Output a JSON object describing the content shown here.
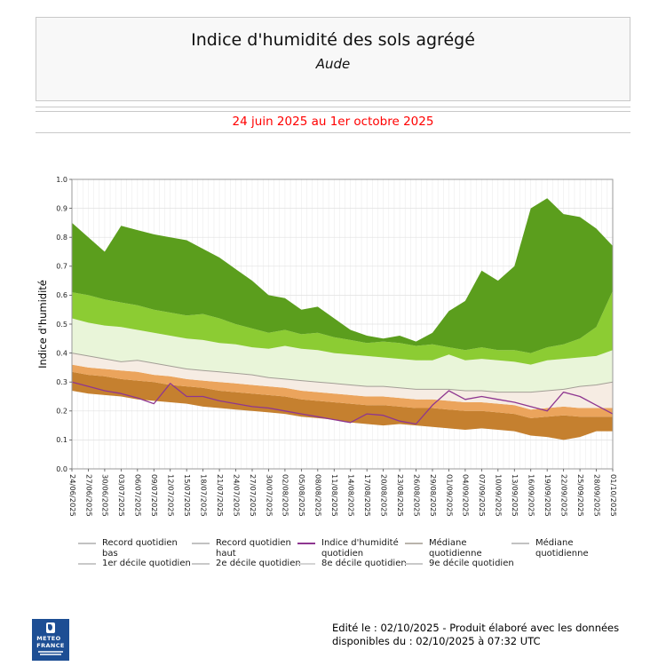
{
  "header": {
    "title": "Indice d'humidité des sols agrégé",
    "subtitle": "Aude",
    "period": "24 juin 2025 au 1er octobre 2025"
  },
  "colors": {
    "dark_green": "#5b9e1d",
    "bright_green": "#8ccc33",
    "pale_green": "#e9f5d9",
    "cream": "#f6ece3",
    "light_orange": "#eba45c",
    "dark_orange": "#c5802f",
    "indice_line": "#8e3690",
    "mediane_line": "#a39e96",
    "period_red": "#ff0000",
    "logo_blue": "#1d4e94",
    "axis": "#999999"
  },
  "chart_data": {
    "type": "area",
    "ylabel": "Indice d'humidité",
    "ylim": [
      0.0,
      1.0
    ],
    "grid": true,
    "legend_position": "bottom",
    "categories": [
      "24/06/2025",
      "27/06/2025",
      "30/06/2025",
      "03/07/2025",
      "06/07/2025",
      "09/07/2025",
      "12/07/2025",
      "15/07/2025",
      "18/07/2025",
      "21/07/2025",
      "24/07/2025",
      "27/07/2025",
      "30/07/2025",
      "02/08/2025",
      "05/08/2025",
      "08/08/2025",
      "11/08/2025",
      "14/08/2025",
      "17/08/2025",
      "20/08/2025",
      "23/08/2025",
      "26/08/2025",
      "29/08/2025",
      "01/09/2025",
      "04/09/2025",
      "07/09/2025",
      "10/09/2025",
      "13/09/2025",
      "16/09/2025",
      "19/09/2025",
      "22/09/2025",
      "25/09/2025",
      "28/09/2025",
      "01/10/2025"
    ],
    "series": [
      {
        "name": "Record quotidien bas",
        "values": [
          0.27,
          0.26,
          0.255,
          0.25,
          0.24,
          0.235,
          0.23,
          0.225,
          0.215,
          0.21,
          0.205,
          0.2,
          0.195,
          0.19,
          0.18,
          0.175,
          0.17,
          0.16,
          0.155,
          0.15,
          0.155,
          0.15,
          0.145,
          0.14,
          0.135,
          0.14,
          0.135,
          0.13,
          0.115,
          0.11,
          0.1,
          0.11,
          0.13,
          0.13
        ]
      },
      {
        "name": "1er décile quotidien",
        "values": [
          0.335,
          0.325,
          0.32,
          0.31,
          0.305,
          0.3,
          0.29,
          0.285,
          0.28,
          0.27,
          0.265,
          0.26,
          0.255,
          0.25,
          0.24,
          0.235,
          0.23,
          0.225,
          0.22,
          0.22,
          0.215,
          0.21,
          0.21,
          0.205,
          0.2,
          0.2,
          0.195,
          0.19,
          0.175,
          0.18,
          0.185,
          0.18,
          0.18,
          0.18
        ]
      },
      {
        "name": "2e décile quotidien",
        "values": [
          0.36,
          0.35,
          0.345,
          0.34,
          0.335,
          0.325,
          0.32,
          0.31,
          0.305,
          0.3,
          0.295,
          0.29,
          0.285,
          0.28,
          0.27,
          0.265,
          0.26,
          0.255,
          0.25,
          0.25,
          0.245,
          0.24,
          0.24,
          0.235,
          0.23,
          0.23,
          0.225,
          0.22,
          0.205,
          0.21,
          0.215,
          0.21,
          0.21,
          0.21
        ]
      },
      {
        "name": "Médiane quotidienne",
        "values": [
          0.4,
          0.39,
          0.38,
          0.37,
          0.375,
          0.365,
          0.355,
          0.345,
          0.34,
          0.335,
          0.33,
          0.325,
          0.315,
          0.31,
          0.305,
          0.3,
          0.295,
          0.29,
          0.285,
          0.285,
          0.28,
          0.275,
          0.275,
          0.275,
          0.27,
          0.27,
          0.265,
          0.265,
          0.265,
          0.27,
          0.275,
          0.285,
          0.29,
          0.3
        ]
      },
      {
        "name": "8e décile quotidien",
        "values": [
          0.52,
          0.505,
          0.495,
          0.49,
          0.48,
          0.47,
          0.46,
          0.45,
          0.445,
          0.435,
          0.43,
          0.42,
          0.415,
          0.425,
          0.415,
          0.41,
          0.4,
          0.395,
          0.39,
          0.385,
          0.38,
          0.375,
          0.375,
          0.395,
          0.375,
          0.38,
          0.375,
          0.37,
          0.36,
          0.375,
          0.38,
          0.385,
          0.39,
          0.41
        ]
      },
      {
        "name": "9e décile quotidien",
        "values": [
          0.61,
          0.6,
          0.585,
          0.575,
          0.565,
          0.55,
          0.54,
          0.53,
          0.535,
          0.52,
          0.5,
          0.485,
          0.47,
          0.48,
          0.465,
          0.47,
          0.455,
          0.445,
          0.435,
          0.44,
          0.435,
          0.425,
          0.43,
          0.42,
          0.41,
          0.42,
          0.41,
          0.41,
          0.4,
          0.42,
          0.43,
          0.45,
          0.49,
          0.615
        ]
      },
      {
        "name": "Record quotidien haut",
        "values": [
          0.85,
          0.8,
          0.75,
          0.84,
          0.825,
          0.81,
          0.8,
          0.79,
          0.76,
          0.73,
          0.69,
          0.65,
          0.6,
          0.59,
          0.55,
          0.56,
          0.52,
          0.48,
          0.46,
          0.45,
          0.46,
          0.44,
          0.47,
          0.545,
          0.58,
          0.685,
          0.65,
          0.7,
          0.9,
          0.935,
          0.88,
          0.87,
          0.83,
          0.77
        ]
      },
      {
        "name": "Indice d'humidité quotidien",
        "values": [
          0.3,
          0.285,
          0.27,
          0.26,
          0.245,
          0.225,
          0.295,
          0.25,
          0.25,
          0.235,
          0.225,
          0.215,
          0.21,
          0.2,
          0.19,
          0.18,
          0.17,
          0.16,
          0.19,
          0.185,
          0.165,
          0.155,
          0.22,
          0.27,
          0.24,
          0.25,
          0.24,
          0.23,
          0.215,
          0.2,
          0.265,
          0.25,
          0.22,
          0.19
        ]
      }
    ]
  },
  "legend": {
    "rows": [
      [
        {
          "label": "Record quotidien bas",
          "color": "#c2c2c2"
        },
        {
          "label": "Record quotidien haut",
          "color": "#c2c2c2"
        },
        {
          "label": "Indice d'humidité quotidien",
          "color": "#8e3690"
        },
        {
          "label": "Médiane quotidienne",
          "color": "#b9b4ac"
        },
        {
          "label": "Médiane quotidienne",
          "color": "#c2c2c2"
        }
      ],
      [
        {
          "label": "1er décile quotidien",
          "color": "#c9c9c9"
        },
        {
          "label": "2e décile quotidien",
          "color": "#c9c9c9"
        },
        {
          "label": "8e décile quotidien",
          "color": "#d4d4d4"
        },
        {
          "label": "9e décile quotidien",
          "color": "#c9c9c9"
        }
      ]
    ]
  },
  "footer": {
    "logo_line1": "METEO",
    "logo_line2": "FRANCE",
    "edit_line1": "Edité le : 02/10/2025 - Produit élaboré avec les données",
    "edit_line2": "disponibles du : 02/10/2025 à 07:32 UTC"
  }
}
